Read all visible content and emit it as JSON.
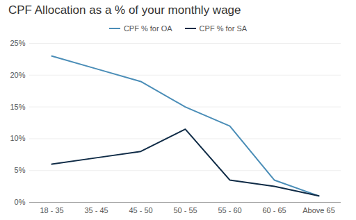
{
  "chart_data": {
    "type": "line",
    "title": "CPF Allocation as a % of your monthly wage",
    "categories": [
      "18 - 35",
      "35 - 45",
      "45 - 50",
      "50 - 55",
      "55 - 60",
      "60 - 65",
      "Above 65"
    ],
    "series": [
      {
        "name": "CPF % for OA",
        "color": "#4a8db7",
        "values": [
          23,
          21,
          19,
          15,
          12,
          3.5,
          1
        ]
      },
      {
        "name": "CPF % for SA",
        "color": "#0f2b46",
        "values": [
          6,
          7,
          8,
          11.5,
          3.5,
          2.5,
          1
        ]
      }
    ],
    "ylim": [
      0,
      25
    ],
    "yticks": [
      {
        "value": 0,
        "label": "0%"
      },
      {
        "value": 5,
        "label": "5%"
      },
      {
        "value": 10,
        "label": "10%"
      },
      {
        "value": 15,
        "label": "15%"
      },
      {
        "value": 20,
        "label": "20%"
      },
      {
        "value": 25,
        "label": "25%"
      }
    ],
    "grid": true,
    "legend": "top"
  }
}
